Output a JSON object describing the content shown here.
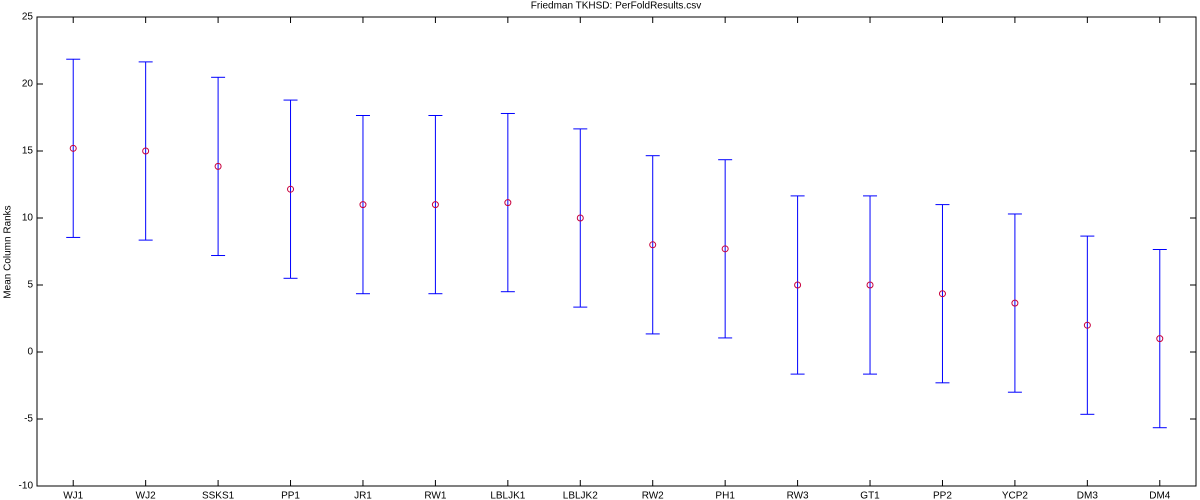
{
  "chart_data": {
    "type": "errorbar",
    "title": "Friedman TKHSD: PerFoldResults.csv",
    "y_label": "Mean Column Ranks",
    "categories": [
      "WJ1",
      "WJ2",
      "SSKS1",
      "PP1",
      "JR1",
      "RW1",
      "LBLJK1",
      "LBLJK2",
      "RW2",
      "PH1",
      "RW3",
      "GT1",
      "PP2",
      "YCP2",
      "DM3",
      "DM4"
    ],
    "values": [
      15.2,
      15.0,
      13.85,
      12.15,
      11.0,
      11.0,
      11.15,
      10.0,
      8.0,
      7.7,
      5.0,
      5.0,
      4.35,
      3.65,
      2.0,
      1.0
    ],
    "errors": [
      6.65,
      6.65,
      6.65,
      6.65,
      6.65,
      6.65,
      6.65,
      6.65,
      6.65,
      6.65,
      6.65,
      6.65,
      6.65,
      6.65,
      6.65,
      6.65
    ],
    "color": "#0000ff",
    "marker_color": "#c8003c",
    "ylim": [
      -10,
      25
    ],
    "yticks": [
      -10,
      -5,
      0,
      5,
      10,
      15,
      20,
      25
    ]
  }
}
